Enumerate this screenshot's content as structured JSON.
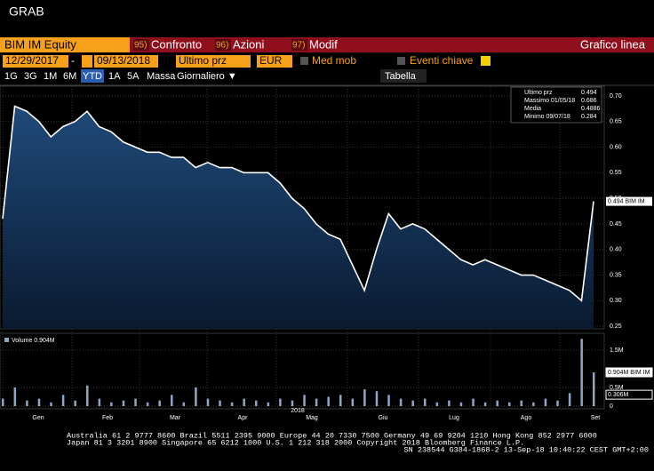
{
  "window_title": "GRAB",
  "header": {
    "ticker": "BIM IM Equity",
    "menu": [
      {
        "key": "95)",
        "label": "Confronto"
      },
      {
        "key": "96)",
        "label": "Azioni"
      },
      {
        "key": "97)",
        "label": "Modif"
      }
    ],
    "view": "Grafico linea"
  },
  "toolbar": {
    "start_date": "12/29/2017",
    "separator": "-",
    "end_date": "09/13/2018",
    "field": "Ultimo prz",
    "currency": "EUR",
    "moving_avg": "Med mob",
    "events": "Eventi chiave"
  },
  "periods": [
    "1G",
    "3G",
    "1M",
    "6M",
    "YTD",
    "1A",
    "5A",
    "Massa",
    "Giornaliero ▼"
  ],
  "active_period": "YTD",
  "table_button": "Tabella",
  "chart_data": [
    {
      "type": "line",
      "name": "Ultimo prz",
      "color": "#ffffff",
      "values": [
        0.46,
        0.68,
        0.67,
        0.65,
        0.62,
        0.64,
        0.65,
        0.67,
        0.64,
        0.63,
        0.61,
        0.6,
        0.59,
        0.59,
        0.58,
        0.58,
        0.56,
        0.57,
        0.56,
        0.56,
        0.55,
        0.55,
        0.55,
        0.53,
        0.5,
        0.48,
        0.45,
        0.43,
        0.42,
        0.37,
        0.32,
        0.4,
        0.47,
        0.44,
        0.45,
        0.44,
        0.42,
        0.4,
        0.38,
        0.37,
        0.38,
        0.37,
        0.36,
        0.35,
        0.35,
        0.34,
        0.33,
        0.32,
        0.3,
        0.494
      ],
      "ylim": [
        0.245,
        0.719
      ],
      "yticks": [
        {
          "value": 0.7,
          "label": "0.70"
        },
        0.65,
        {
          "value": 0.6,
          "label": "0.60"
        },
        0.55,
        {
          "value": 0.5,
          "label": "0.50"
        },
        0.45,
        {
          "value": 0.4,
          "label": "0.40"
        },
        0.35,
        {
          "value": 0.3,
          "label": "0.30"
        },
        0.25
      ],
      "last_label": "0.494 BIM IM",
      "legend": [
        {
          "name": "Ultimo prz",
          "value": 0.494
        },
        {
          "name": "Massimo 01/05/18",
          "value": 0.686
        },
        {
          "name": "Media",
          "value": 0.4886
        },
        {
          "name": "Minimo 09/07/18",
          "value": 0.284
        }
      ],
      "xlabels": [
        "Gen",
        "Feb",
        "Mar",
        "Apr",
        "Mag",
        "Giu",
        "Lug",
        "Ago",
        "Set"
      ],
      "year": "2018",
      "grid": true
    },
    {
      "type": "bar",
      "name": "Volume 0.904M",
      "color": "#8ea6c6",
      "values": [
        0.2,
        0.5,
        0.15,
        0.2,
        0.1,
        0.3,
        0.15,
        0.55,
        0.2,
        0.1,
        0.15,
        0.2,
        0.1,
        0.15,
        0.3,
        0.1,
        0.5,
        0.2,
        0.15,
        0.1,
        0.2,
        0.15,
        0.1,
        0.2,
        0.15,
        0.3,
        0.2,
        0.25,
        0.3,
        0.2,
        0.45,
        0.4,
        0.3,
        0.2,
        0.15,
        0.2,
        0.1,
        0.15,
        0.1,
        0.2,
        0.1,
        0.15,
        0.1,
        0.15,
        0.1,
        0.2,
        0.15,
        0.35,
        1.8,
        0.904
      ],
      "ylim": [
        0,
        1.95
      ],
      "yticks": [
        {
          "value": 1.5,
          "label": "1.5M"
        },
        {
          "value": 0.5,
          "label": "0.5M"
        },
        0
      ],
      "markers": [
        {
          "value": 0.904,
          "label": "0.904M BIM IM"
        },
        {
          "value": 0.306,
          "label": "0.306M"
        }
      ]
    }
  ],
  "footer": [
    "Australia 61 2 9777 8600 Brazil 5511 2395 9000 Europe 44 20 7330 7500 Germany 49 69 9204 1210 Hong Kong 852 2977 6000",
    "Japan 81 3 3201 8900      Singapore 65 6212 1000      U.S. 1 212 318 2000      Copyright 2018 Bloomberg Finance L.P.",
    "SN 238544 G384-1868-2 13-Sep-18 10:40:22 CEST GMT+2:00"
  ]
}
